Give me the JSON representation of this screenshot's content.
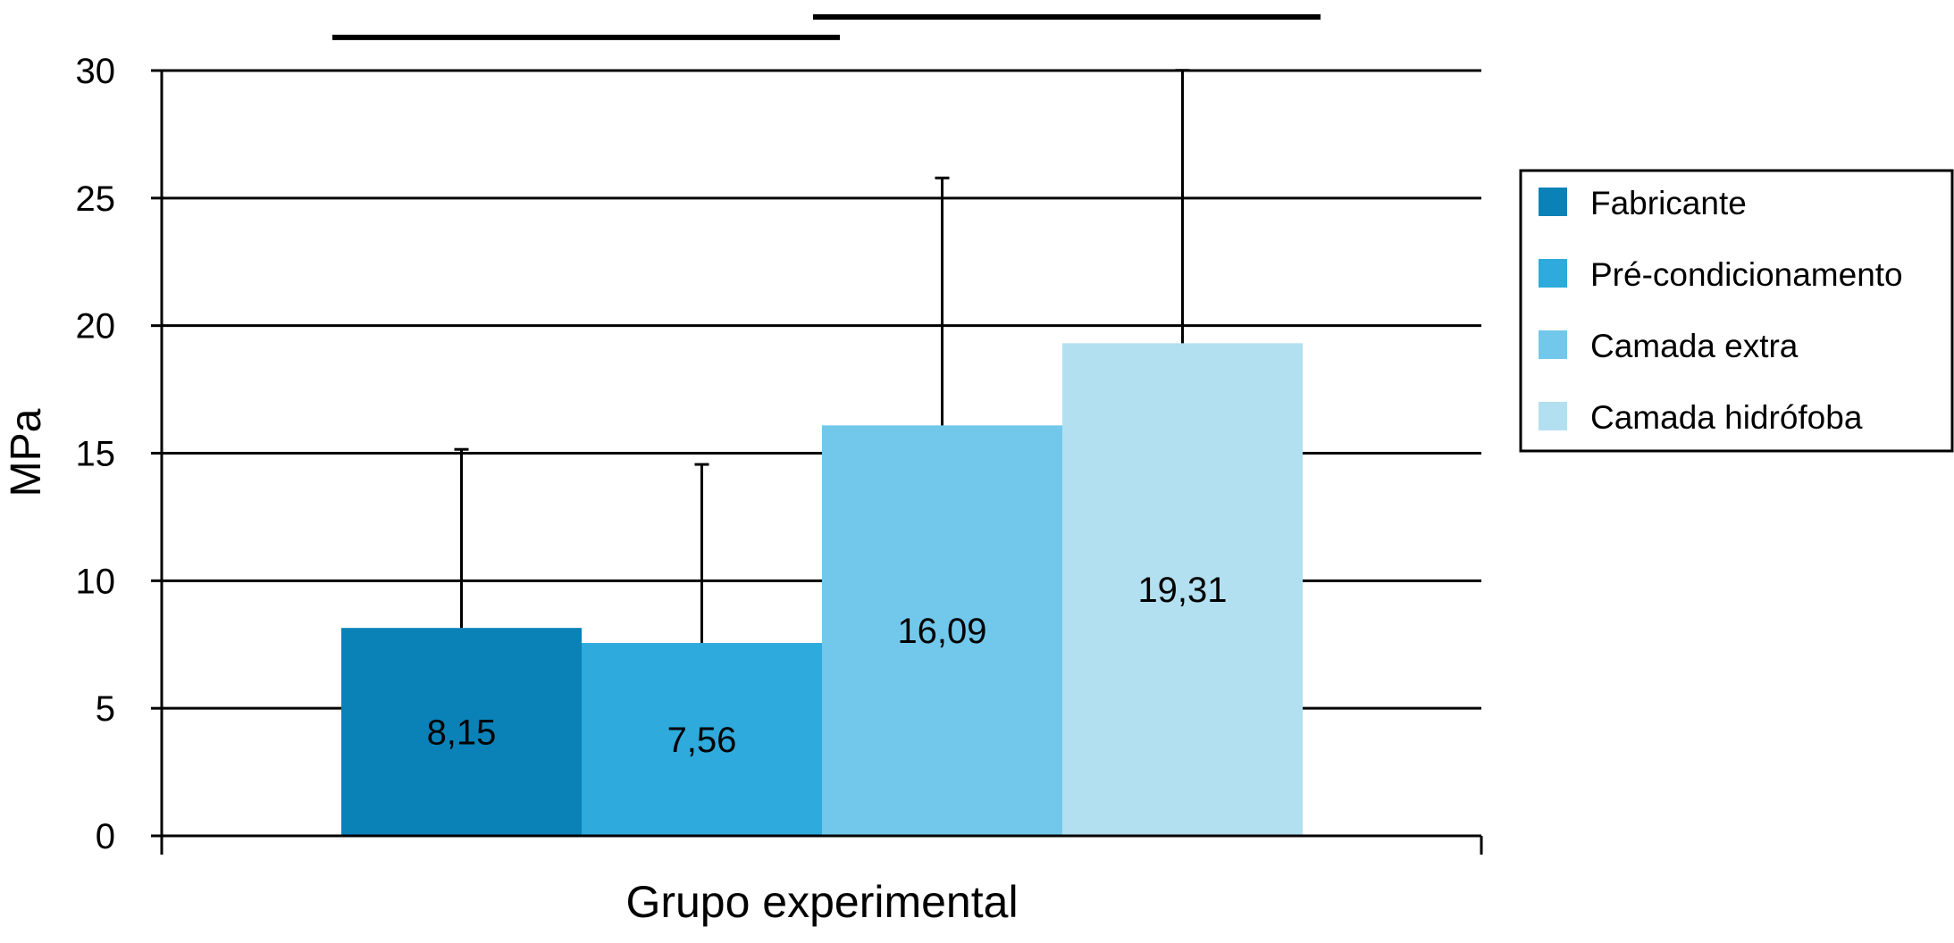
{
  "chart_data": {
    "type": "bar",
    "xlabel": "Grupo experimental",
    "ylabel": "MPa",
    "ylim": [
      0,
      30
    ],
    "yticks": [
      0,
      5,
      10,
      15,
      20,
      25,
      30
    ],
    "grid": true,
    "legend_position": "right",
    "series": [
      {
        "name": "Fabricante",
        "value": 8.15,
        "label": "8,15",
        "error": 7.0,
        "color": "#0a82b8"
      },
      {
        "name": "Pré-condicionamento",
        "value": 7.56,
        "label": "7,56",
        "error": 7.0,
        "color": "#2eaadc"
      },
      {
        "name": "Camada extra",
        "value": 16.09,
        "label": "16,09",
        "error": 9.7,
        "color": "#72c8ea"
      },
      {
        "name": "Camada hidrófoba",
        "value": 19.31,
        "label": "19,31",
        "error": 10.7,
        "color": "#b2e0f0"
      }
    ],
    "significance_bars": [
      {
        "from": 0,
        "to": 1,
        "level": 31.3
      },
      {
        "from": 2,
        "to": 3,
        "level": 32.1
      }
    ]
  }
}
